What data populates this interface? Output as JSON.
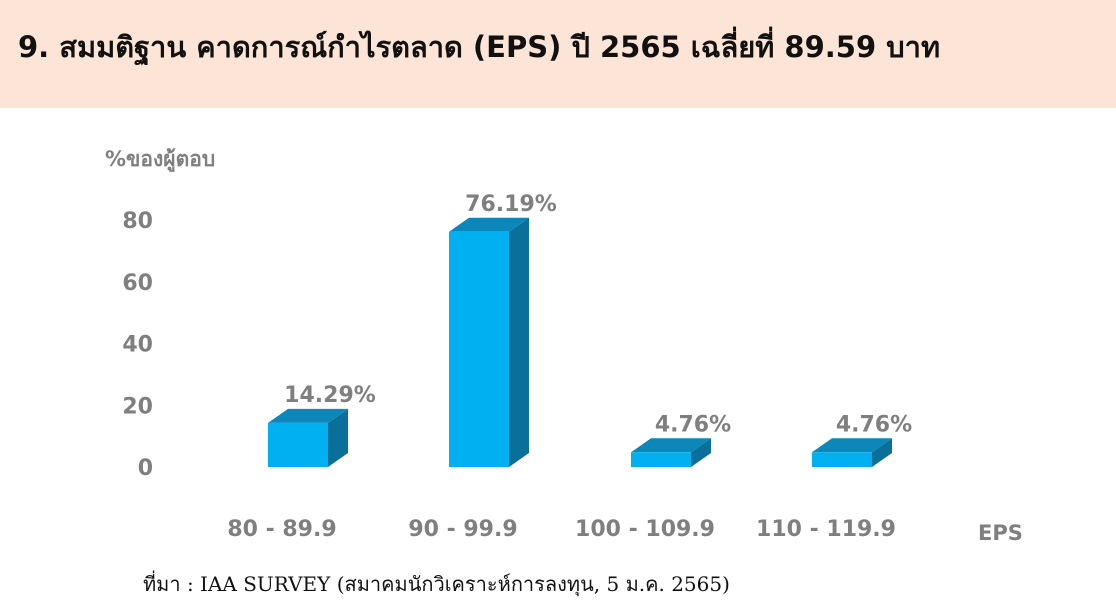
{
  "header": {
    "title": "9. สมมติฐาน คาดการณ์กำไรตลาด (EPS) ปี 2565 เฉลี่ยที่ 89.59 บาท"
  },
  "colors": {
    "header_bg": "#fce4d6",
    "bar_front": "#00b0f0",
    "bar_top": "#0c87b9",
    "bar_side": "#0a6f99",
    "label": "#7f7f7f"
  },
  "chart_data": {
    "type": "bar",
    "categories": [
      "80 - 89.9",
      "90 - 99.9",
      "100 - 109.9",
      "110 - 119.9"
    ],
    "values": [
      14.29,
      76.19,
      4.76,
      4.76
    ],
    "data_labels": [
      "14.29%",
      "76.19%",
      "4.76%",
      "4.76%"
    ],
    "ylabel": "%ของผู้ตอบ",
    "xlabel": "EPS",
    "ylim": [
      0,
      80
    ],
    "yticks": [
      "0",
      "20",
      "40",
      "60",
      "80"
    ],
    "grid": false,
    "style": "3d-column"
  },
  "footer": {
    "source": "ที่มา : IAA SURVEY (สมาคมนักวิเคราะห์การลงทุน, 5 ม.ค. 2565)"
  }
}
